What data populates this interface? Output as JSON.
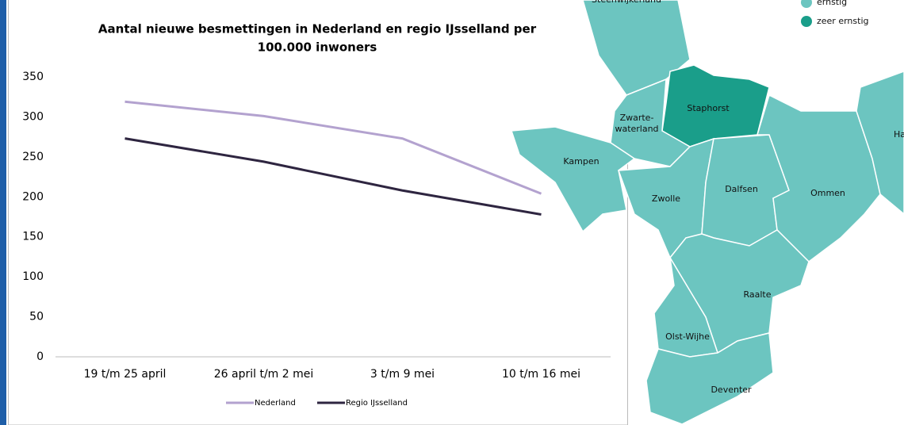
{
  "chart_data": {
    "type": "line",
    "title": [
      "Aantal nieuwe besmettingen in Nederland en regio IJsselland per",
      "100.000 inwoners"
    ],
    "categories": [
      "19 t/m 25 april",
      "26 april t/m 2 mei",
      "3 t/m 9 mei",
      "10 t/m 16 mei"
    ],
    "series": [
      {
        "name": "Nederland",
        "color": "#b3a2cf",
        "values": [
          319,
          301,
          273,
          204
        ]
      },
      {
        "name": "Regio IJsselland",
        "color": "#2e2540",
        "values": [
          273,
          244,
          208,
          178
        ]
      }
    ],
    "ylim": [
      0,
      350
    ],
    "yticks": [
      0,
      50,
      100,
      150,
      200,
      250,
      300,
      350
    ],
    "grid": false,
    "legend": "bottom"
  },
  "map": {
    "legend": [
      {
        "label": "ernstig",
        "color": "#6cc5c0"
      },
      {
        "label": "zeer ernstig",
        "color": "#1a9e8a"
      }
    ],
    "regions": [
      {
        "name": [
          "Steenwijkerland"
        ],
        "color": "#6cc5c0"
      },
      {
        "name": [
          "Staphorst"
        ],
        "color": "#1a9e8a"
      },
      {
        "name": [
          "Zwarte-",
          "waterland"
        ],
        "color": "#6cc5c0"
      },
      {
        "name": [
          "Kampen"
        ],
        "color": "#6cc5c0"
      },
      {
        "name": [
          "Zwolle"
        ],
        "color": "#6cc5c0"
      },
      {
        "name": [
          "Dalfsen"
        ],
        "color": "#6cc5c0"
      },
      {
        "name": [
          "Ommen"
        ],
        "color": "#6cc5c0"
      },
      {
        "name": [
          "Hardenberg"
        ],
        "color": "#6cc5c0"
      },
      {
        "name": [
          "Raalte"
        ],
        "color": "#6cc5c0"
      },
      {
        "name": [
          "Olst-Wijhe"
        ],
        "color": "#6cc5c0"
      },
      {
        "name": [
          "Deventer"
        ],
        "color": "#6cc5c0"
      }
    ]
  }
}
